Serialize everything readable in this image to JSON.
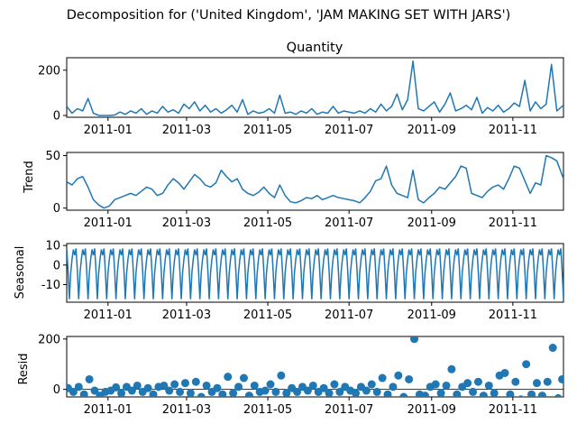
{
  "figure": {
    "suptitle": "Decomposition for ('United Kingdom', 'JAM MAKING SET WITH JARS')",
    "line_color": "#1f77b4"
  },
  "chart_data": [
    {
      "type": "line",
      "id": "observed",
      "title": "Quantity",
      "ylabel": "",
      "xlim": [
        "2010-12-01",
        "2011-12-09"
      ],
      "ylim": [
        -8,
        255
      ],
      "yticks": [
        0,
        200
      ],
      "xticks": [
        "2011-01",
        "2011-03",
        "2011-05",
        "2011-07",
        "2011-09",
        "2011-11"
      ],
      "series": [
        {
          "x": [
            "2010-12-01",
            "2010-12-05",
            "2010-12-09",
            "2010-12-13",
            "2010-12-17",
            "2010-12-21",
            "2010-12-25",
            "2010-12-29",
            "2011-01-02",
            "2011-01-06",
            "2011-01-10",
            "2011-01-14",
            "2011-01-18",
            "2011-01-22",
            "2011-01-26",
            "2011-01-30",
            "2011-02-03",
            "2011-02-07",
            "2011-02-11",
            "2011-02-15",
            "2011-02-19",
            "2011-02-23",
            "2011-02-27",
            "2011-03-03",
            "2011-03-07",
            "2011-03-11",
            "2011-03-15",
            "2011-03-19",
            "2011-03-23",
            "2011-03-27",
            "2011-03-31",
            "2011-04-04",
            "2011-04-08",
            "2011-04-12",
            "2011-04-16",
            "2011-04-20",
            "2011-04-24",
            "2011-04-28",
            "2011-05-02",
            "2011-05-06",
            "2011-05-10",
            "2011-05-14",
            "2011-05-18",
            "2011-05-22",
            "2011-05-26",
            "2011-05-30",
            "2011-06-03",
            "2011-06-07",
            "2011-06-11",
            "2011-06-15",
            "2011-06-19",
            "2011-06-23",
            "2011-06-27",
            "2011-07-01",
            "2011-07-05",
            "2011-07-09",
            "2011-07-13",
            "2011-07-17",
            "2011-07-21",
            "2011-07-25",
            "2011-07-29",
            "2011-08-02",
            "2011-08-06",
            "2011-08-10",
            "2011-08-14",
            "2011-08-18",
            "2011-08-22",
            "2011-08-26",
            "2011-08-30",
            "2011-09-03",
            "2011-09-07",
            "2011-09-11",
            "2011-09-15",
            "2011-09-19",
            "2011-09-23",
            "2011-09-27",
            "2011-10-01",
            "2011-10-05",
            "2011-10-09",
            "2011-10-13",
            "2011-10-17",
            "2011-10-21",
            "2011-10-25",
            "2011-10-29",
            "2011-11-02",
            "2011-11-06",
            "2011-11-10",
            "2011-11-14",
            "2011-11-18",
            "2011-11-22",
            "2011-11-26",
            "2011-11-30",
            "2011-12-04",
            "2011-12-09"
          ],
          "y": [
            40,
            10,
            30,
            20,
            75,
            10,
            0,
            0,
            0,
            2,
            15,
            5,
            20,
            10,
            30,
            5,
            20,
            10,
            40,
            15,
            25,
            10,
            50,
            30,
            60,
            20,
            45,
            15,
            30,
            10,
            25,
            45,
            15,
            70,
            5,
            20,
            10,
            15,
            30,
            10,
            90,
            10,
            15,
            5,
            20,
            10,
            30,
            5,
            15,
            10,
            40,
            10,
            20,
            15,
            10,
            20,
            10,
            30,
            15,
            50,
            20,
            40,
            95,
            25,
            70,
            240,
            30,
            20,
            40,
            60,
            15,
            50,
            100,
            20,
            30,
            45,
            25,
            80,
            10,
            35,
            20,
            45,
            15,
            30,
            55,
            40,
            155,
            20,
            60,
            30,
            50,
            225,
            20,
            45
          ]
        }
      ]
    },
    {
      "type": "line",
      "id": "trend",
      "title": "",
      "ylabel": "Trend",
      "xlim": [
        "2010-12-01",
        "2011-12-09"
      ],
      "ylim": [
        -2,
        53
      ],
      "yticks": [
        0,
        50
      ],
      "xticks": [
        "2011-01",
        "2011-03",
        "2011-05",
        "2011-07",
        "2011-09",
        "2011-11"
      ],
      "series": [
        {
          "x": [
            "2010-12-01",
            "2010-12-05",
            "2010-12-09",
            "2010-12-13",
            "2010-12-17",
            "2010-12-21",
            "2010-12-25",
            "2010-12-29",
            "2011-01-02",
            "2011-01-06",
            "2011-01-10",
            "2011-01-14",
            "2011-01-18",
            "2011-01-22",
            "2011-01-26",
            "2011-01-30",
            "2011-02-03",
            "2011-02-07",
            "2011-02-11",
            "2011-02-15",
            "2011-02-19",
            "2011-02-23",
            "2011-02-27",
            "2011-03-03",
            "2011-03-07",
            "2011-03-11",
            "2011-03-15",
            "2011-03-19",
            "2011-03-23",
            "2011-03-27",
            "2011-03-31",
            "2011-04-04",
            "2011-04-08",
            "2011-04-12",
            "2011-04-16",
            "2011-04-20",
            "2011-04-24",
            "2011-04-28",
            "2011-05-02",
            "2011-05-06",
            "2011-05-10",
            "2011-05-14",
            "2011-05-18",
            "2011-05-22",
            "2011-05-26",
            "2011-05-30",
            "2011-06-03",
            "2011-06-07",
            "2011-06-11",
            "2011-06-15",
            "2011-06-19",
            "2011-06-23",
            "2011-06-27",
            "2011-07-01",
            "2011-07-05",
            "2011-07-09",
            "2011-07-13",
            "2011-07-17",
            "2011-07-21",
            "2011-07-25",
            "2011-07-29",
            "2011-08-02",
            "2011-08-06",
            "2011-08-10",
            "2011-08-14",
            "2011-08-18",
            "2011-08-22",
            "2011-08-26",
            "2011-08-30",
            "2011-09-03",
            "2011-09-07",
            "2011-09-11",
            "2011-09-15",
            "2011-09-19",
            "2011-09-23",
            "2011-09-27",
            "2011-10-01",
            "2011-10-05",
            "2011-10-09",
            "2011-10-13",
            "2011-10-17",
            "2011-10-21",
            "2011-10-25",
            "2011-10-29",
            "2011-11-02",
            "2011-11-06",
            "2011-11-10",
            "2011-11-14",
            "2011-11-18",
            "2011-11-22",
            "2011-11-26",
            "2011-11-30",
            "2011-12-04",
            "2011-12-09"
          ],
          "y": [
            25,
            22,
            28,
            30,
            20,
            8,
            3,
            0,
            2,
            8,
            10,
            12,
            14,
            12,
            16,
            20,
            18,
            12,
            14,
            22,
            28,
            24,
            18,
            25,
            32,
            28,
            22,
            20,
            24,
            36,
            30,
            25,
            28,
            18,
            14,
            12,
            15,
            20,
            14,
            10,
            22,
            12,
            6,
            5,
            7,
            10,
            9,
            12,
            8,
            10,
            12,
            10,
            9,
            8,
            7,
            5,
            10,
            16,
            26,
            28,
            40,
            22,
            14,
            12,
            10,
            36,
            8,
            5,
            10,
            14,
            20,
            18,
            24,
            30,
            40,
            38,
            14,
            12,
            10,
            16,
            20,
            22,
            18,
            28,
            40,
            38,
            26,
            14,
            24,
            22,
            50,
            48,
            45,
            28
          ]
        }
      ]
    },
    {
      "type": "line",
      "id": "seasonal",
      "title": "",
      "ylabel": "Seasonal",
      "xlim": [
        "2010-12-01",
        "2011-12-09"
      ],
      "ylim": [
        -19,
        11
      ],
      "yticks": [
        -10,
        0,
        10
      ],
      "xticks": [
        "2011-01",
        "2011-03",
        "2011-05",
        "2011-07",
        "2011-09",
        "2011-11"
      ],
      "period_days": 7,
      "pattern": [
        8.5,
        -3,
        -17.5,
        -4,
        3,
        8,
        5
      ]
    },
    {
      "type": "scatter",
      "id": "resid",
      "title": "",
      "ylabel": "Resid",
      "xlim": [
        "2010-12-01",
        "2011-12-09"
      ],
      "ylim": [
        -30,
        210
      ],
      "yticks": [
        0,
        200
      ],
      "xticks": [
        "2011-01",
        "2011-03",
        "2011-05",
        "2011-07",
        "2011-09",
        "2011-11"
      ],
      "baseline": 0,
      "series": [
        {
          "x": [
            "2010-12-02",
            "2010-12-06",
            "2010-12-10",
            "2010-12-14",
            "2010-12-18",
            "2010-12-22",
            "2010-12-26",
            "2010-12-30",
            "2011-01-03",
            "2011-01-07",
            "2011-01-11",
            "2011-01-15",
            "2011-01-19",
            "2011-01-23",
            "2011-01-27",
            "2011-01-31",
            "2011-02-04",
            "2011-02-08",
            "2011-02-12",
            "2011-02-16",
            "2011-02-20",
            "2011-02-24",
            "2011-02-28",
            "2011-03-04",
            "2011-03-08",
            "2011-03-12",
            "2011-03-16",
            "2011-03-20",
            "2011-03-24",
            "2011-03-28",
            "2011-04-01",
            "2011-04-05",
            "2011-04-09",
            "2011-04-13",
            "2011-04-17",
            "2011-04-21",
            "2011-04-25",
            "2011-04-29",
            "2011-05-03",
            "2011-05-07",
            "2011-05-11",
            "2011-05-15",
            "2011-05-19",
            "2011-05-23",
            "2011-05-27",
            "2011-05-31",
            "2011-06-04",
            "2011-06-08",
            "2011-06-12",
            "2011-06-16",
            "2011-06-20",
            "2011-06-24",
            "2011-06-28",
            "2011-07-02",
            "2011-07-06",
            "2011-07-10",
            "2011-07-14",
            "2011-07-18",
            "2011-07-22",
            "2011-07-26",
            "2011-07-30",
            "2011-08-03",
            "2011-08-07",
            "2011-08-11",
            "2011-08-15",
            "2011-08-19",
            "2011-08-23",
            "2011-08-27",
            "2011-08-31",
            "2011-09-04",
            "2011-09-08",
            "2011-09-12",
            "2011-09-16",
            "2011-09-20",
            "2011-09-24",
            "2011-09-28",
            "2011-10-02",
            "2011-10-06",
            "2011-10-10",
            "2011-10-14",
            "2011-10-18",
            "2011-10-22",
            "2011-10-26",
            "2011-10-30",
            "2011-11-03",
            "2011-11-07",
            "2011-11-11",
            "2011-11-15",
            "2011-11-19",
            "2011-11-23",
            "2011-11-27",
            "2011-12-01",
            "2011-12-05",
            "2011-12-08"
          ],
          "y": [
            5,
            -10,
            10,
            -20,
            40,
            -5,
            -25,
            -10,
            -5,
            8,
            -15,
            10,
            -5,
            15,
            -10,
            5,
            -20,
            10,
            15,
            -5,
            20,
            -10,
            25,
            -15,
            30,
            -30,
            15,
            -10,
            5,
            -20,
            50,
            -15,
            10,
            45,
            -25,
            15,
            -10,
            -5,
            20,
            -10,
            55,
            -15,
            5,
            -10,
            10,
            -5,
            15,
            -10,
            5,
            -15,
            20,
            -10,
            10,
            -5,
            -15,
            10,
            -5,
            20,
            -10,
            45,
            -20,
            10,
            55,
            -30,
            40,
            200,
            -20,
            -25,
            10,
            20,
            -15,
            15,
            80,
            -20,
            10,
            25,
            -10,
            30,
            -25,
            15,
            -15,
            55,
            65,
            -20,
            30,
            -40,
            100,
            -20,
            25,
            -25,
            30,
            165,
            -35,
            40
          ]
        }
      ]
    }
  ]
}
